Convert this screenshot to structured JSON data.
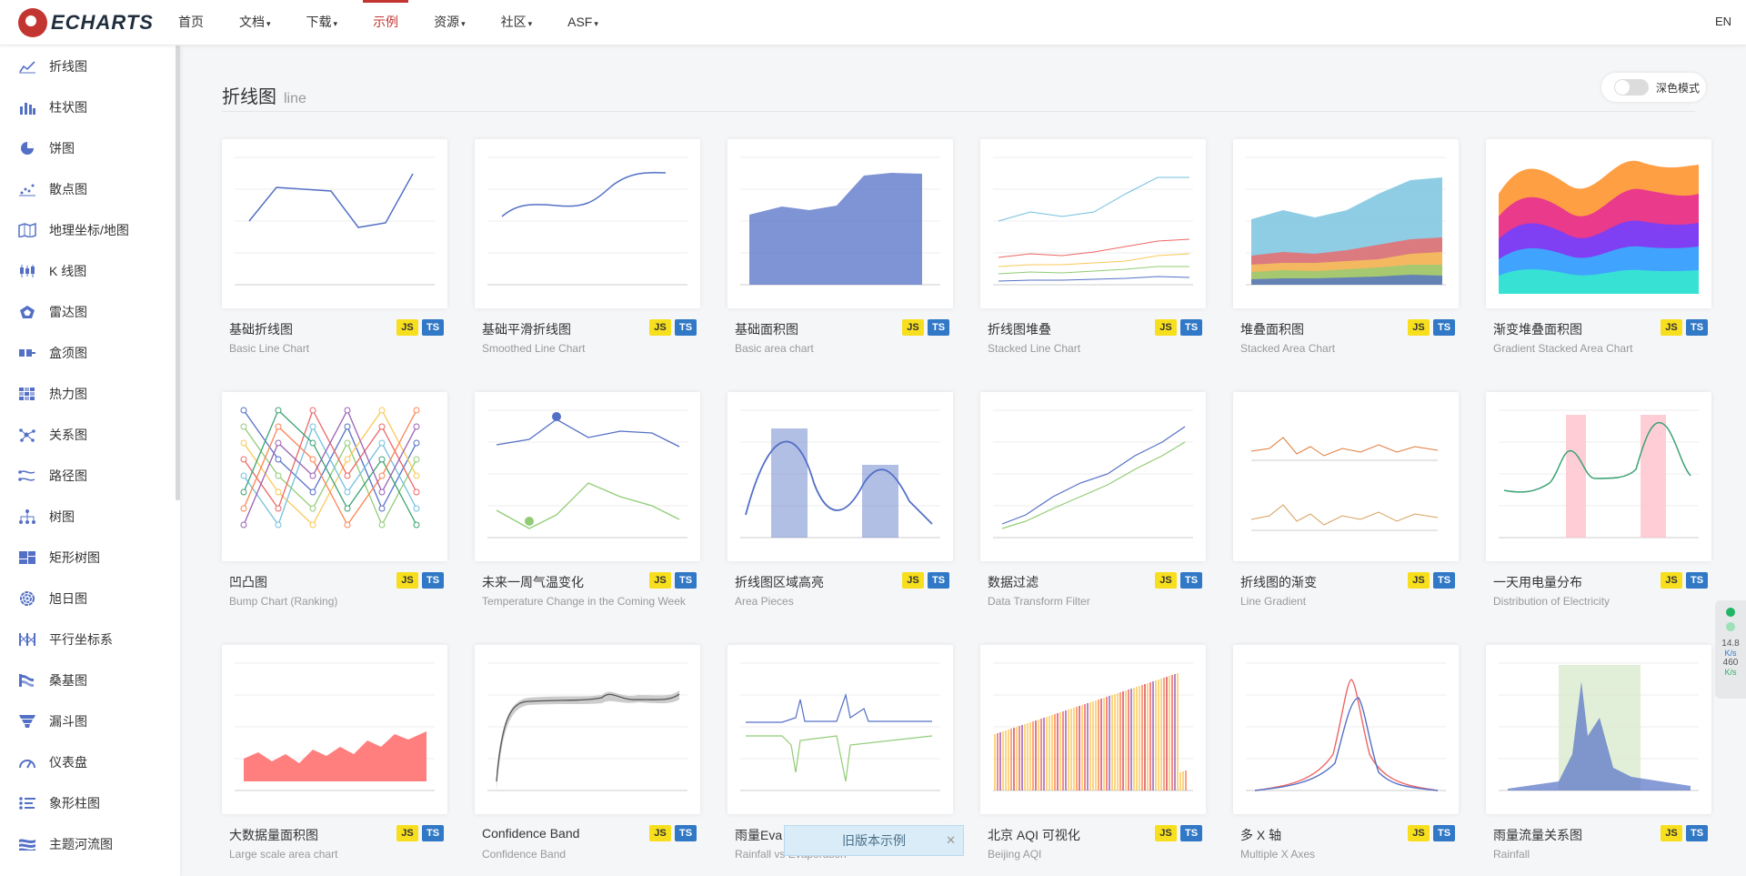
{
  "header": {
    "logo_text": "ECHARTS",
    "nav": [
      {
        "label": "首页",
        "caret": ""
      },
      {
        "label": "文档",
        "caret": "▾"
      },
      {
        "label": "下载",
        "caret": "▾"
      },
      {
        "label": "示例",
        "caret": ""
      },
      {
        "label": "资源",
        "caret": "▾"
      },
      {
        "label": "社区",
        "caret": "▾"
      },
      {
        "label": "ASF",
        "caret": "▾"
      }
    ],
    "active_nav": "示例",
    "lang": "EN"
  },
  "sidebar": {
    "items": [
      {
        "label": "折线图",
        "icon": "line-chart-icon"
      },
      {
        "label": "柱状图",
        "icon": "bar-chart-icon"
      },
      {
        "label": "饼图",
        "icon": "pie-chart-icon"
      },
      {
        "label": "散点图",
        "icon": "scatter-chart-icon"
      },
      {
        "label": "地理坐标/地图",
        "icon": "map-icon"
      },
      {
        "label": "K 线图",
        "icon": "candlestick-icon"
      },
      {
        "label": "雷达图",
        "icon": "radar-icon"
      },
      {
        "label": "盒须图",
        "icon": "boxplot-icon"
      },
      {
        "label": "热力图",
        "icon": "heatmap-icon"
      },
      {
        "label": "关系图",
        "icon": "graph-icon"
      },
      {
        "label": "路径图",
        "icon": "lines-icon"
      },
      {
        "label": "树图",
        "icon": "tree-icon"
      },
      {
        "label": "矩形树图",
        "icon": "treemap-icon"
      },
      {
        "label": "旭日图",
        "icon": "sunburst-icon"
      },
      {
        "label": "平行坐标系",
        "icon": "parallel-icon"
      },
      {
        "label": "桑基图",
        "icon": "sankey-icon"
      },
      {
        "label": "漏斗图",
        "icon": "funnel-icon"
      },
      {
        "label": "仪表盘",
        "icon": "gauge-icon"
      },
      {
        "label": "象形柱图",
        "icon": "pictorial-bar-icon"
      },
      {
        "label": "主题河流图",
        "icon": "theme-river-icon"
      }
    ]
  },
  "main": {
    "title": "折线图",
    "subtitle": "line",
    "dark_mode_label": "深色模式",
    "js_label": "JS",
    "ts_label": "TS",
    "cards": [
      {
        "title": "基础折线图",
        "sub": "Basic Line Chart",
        "thumb": "basic-line"
      },
      {
        "title": "基础平滑折线图",
        "sub": "Smoothed Line Chart",
        "thumb": "smooth-line"
      },
      {
        "title": "基础面积图",
        "sub": "Basic area chart",
        "thumb": "basic-area"
      },
      {
        "title": "折线图堆叠",
        "sub": "Stacked Line Chart",
        "thumb": "stacked-line"
      },
      {
        "title": "堆叠面积图",
        "sub": "Stacked Area Chart",
        "thumb": "stacked-area"
      },
      {
        "title": "渐变堆叠面积图",
        "sub": "Gradient Stacked Area Chart",
        "thumb": "gradient-stacked"
      },
      {
        "title": "凹凸图",
        "sub": "Bump Chart (Ranking)",
        "thumb": "bump"
      },
      {
        "title": "未来一周气温变化",
        "sub": "Temperature Change in the Coming Week",
        "thumb": "temperature"
      },
      {
        "title": "折线图区域高亮",
        "sub": "Area Pieces",
        "thumb": "area-pieces"
      },
      {
        "title": "数据过滤",
        "sub": "Data Transform Filter",
        "thumb": "data-filter"
      },
      {
        "title": "折线图的渐变",
        "sub": "Line Gradient",
        "thumb": "line-gradient"
      },
      {
        "title": "一天用电量分布",
        "sub": "Distribution of Electricity",
        "thumb": "electricity"
      },
      {
        "title": "大数据量面积图",
        "sub": "Large scale area chart",
        "thumb": "large-area"
      },
      {
        "title": "Confidence Band",
        "sub": "Confidence Band",
        "thumb": "confidence"
      },
      {
        "title": "雨量Eva",
        "sub": "Rainfall vs Evaporation",
        "thumb": "rainfall-evap"
      },
      {
        "title": "北京 AQI 可视化",
        "sub": "Beijing AQI",
        "thumb": "aqi"
      },
      {
        "title": "多 X 轴",
        "sub": "Multiple X Axes",
        "thumb": "multi-x"
      },
      {
        "title": "雨量流量关系图",
        "sub": "Rainfall",
        "thumb": "rain-flow"
      }
    ]
  },
  "legacy_notice": "旧版本示例",
  "legacy_close": "✕",
  "net_widget": {
    "up": "14.8",
    "up_unit": "K/s",
    "down": "460",
    "down_unit": "K/s"
  }
}
